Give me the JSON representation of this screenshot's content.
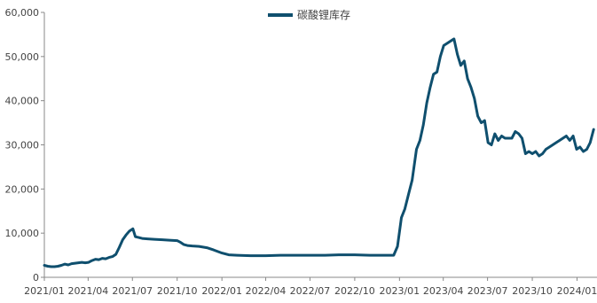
{
  "chart_data": {
    "type": "line",
    "title": "",
    "xlabel": "",
    "ylabel": "",
    "ylim": [
      0,
      60000
    ],
    "yticks": [
      "0",
      "10,000",
      "20,000",
      "30,000",
      "40,000",
      "50,000",
      "60,000"
    ],
    "x_start": "2021-01",
    "x_end": "2024-02",
    "xticks": [
      "2021/01",
      "2021/04",
      "2021/07",
      "2021/10",
      "2022/01",
      "2022/04",
      "2022/07",
      "2022/10",
      "2023/01",
      "2023/04",
      "2023/07",
      "2023/10",
      "2024/01"
    ],
    "grid": false,
    "legend_position": "top-center",
    "series": [
      {
        "name": "碳酸锂库存",
        "color": "#0f4f6e",
        "points": [
          [
            "2021-01-01",
            2700
          ],
          [
            "2021-01-08",
            2500
          ],
          [
            "2021-01-15",
            2400
          ],
          [
            "2021-01-22",
            2400
          ],
          [
            "2021-01-29",
            2500
          ],
          [
            "2021-02-05",
            2700
          ],
          [
            "2021-02-12",
            3000
          ],
          [
            "2021-02-19",
            2800
          ],
          [
            "2021-02-26",
            3100
          ],
          [
            "2021-03-05",
            3200
          ],
          [
            "2021-03-12",
            3300
          ],
          [
            "2021-03-19",
            3400
          ],
          [
            "2021-03-26",
            3300
          ],
          [
            "2021-04-02",
            3400
          ],
          [
            "2021-04-09",
            3800
          ],
          [
            "2021-04-16",
            4100
          ],
          [
            "2021-04-23",
            4000
          ],
          [
            "2021-04-30",
            4300
          ],
          [
            "2021-05-07",
            4200
          ],
          [
            "2021-05-14",
            4500
          ],
          [
            "2021-05-21",
            4700
          ],
          [
            "2021-05-28",
            5200
          ],
          [
            "2021-06-04",
            6800
          ],
          [
            "2021-06-11",
            8500
          ],
          [
            "2021-06-18",
            9600
          ],
          [
            "2021-06-25",
            10500
          ],
          [
            "2021-07-02",
            11000
          ],
          [
            "2021-07-07",
            9200
          ],
          [
            "2021-07-14",
            9000
          ],
          [
            "2021-07-21",
            8800
          ],
          [
            "2021-08-01",
            8700
          ],
          [
            "2021-08-15",
            8600
          ],
          [
            "2021-09-01",
            8500
          ],
          [
            "2021-09-15",
            8400
          ],
          [
            "2021-10-01",
            8300
          ],
          [
            "2021-10-08",
            7900
          ],
          [
            "2021-10-15",
            7400
          ],
          [
            "2021-10-22",
            7200
          ],
          [
            "2021-11-01",
            7100
          ],
          [
            "2021-11-15",
            7000
          ],
          [
            "2021-12-01",
            6700
          ],
          [
            "2021-12-15",
            6200
          ],
          [
            "2022-01-01",
            5500
          ],
          [
            "2022-01-15",
            5100
          ],
          [
            "2022-02-01",
            5000
          ],
          [
            "2022-03-01",
            4900
          ],
          [
            "2022-04-01",
            4900
          ],
          [
            "2022-05-01",
            5000
          ],
          [
            "2022-06-01",
            5000
          ],
          [
            "2022-07-01",
            5000
          ],
          [
            "2022-08-01",
            5000
          ],
          [
            "2022-09-01",
            5100
          ],
          [
            "2022-10-01",
            5100
          ],
          [
            "2022-11-01",
            5000
          ],
          [
            "2022-12-01",
            5000
          ],
          [
            "2022-12-20",
            5000
          ],
          [
            "2022-12-28",
            7000
          ],
          [
            "2023-01-05",
            13500
          ],
          [
            "2023-01-12",
            15500
          ],
          [
            "2023-01-20",
            19000
          ],
          [
            "2023-01-27",
            22000
          ],
          [
            "2023-02-05",
            29000
          ],
          [
            "2023-02-12",
            31000
          ],
          [
            "2023-02-19",
            34500
          ],
          [
            "2023-02-26",
            39500
          ],
          [
            "2023-03-05",
            43000
          ],
          [
            "2023-03-12",
            46000
          ],
          [
            "2023-03-19",
            46500
          ],
          [
            "2023-03-26",
            50000
          ],
          [
            "2023-04-02",
            52500
          ],
          [
            "2023-04-09",
            53000
          ],
          [
            "2023-04-16",
            53500
          ],
          [
            "2023-04-23",
            54000
          ],
          [
            "2023-04-30",
            50500
          ],
          [
            "2023-05-07",
            48000
          ],
          [
            "2023-05-14",
            49000
          ],
          [
            "2023-05-21",
            45000
          ],
          [
            "2023-05-28",
            43000
          ],
          [
            "2023-06-04",
            40500
          ],
          [
            "2023-06-11",
            36500
          ],
          [
            "2023-06-18",
            35000
          ],
          [
            "2023-06-25",
            35500
          ],
          [
            "2023-07-02",
            30500
          ],
          [
            "2023-07-09",
            30000
          ],
          [
            "2023-07-16",
            32500
          ],
          [
            "2023-07-23",
            31000
          ],
          [
            "2023-07-30",
            32000
          ],
          [
            "2023-08-06",
            31500
          ],
          [
            "2023-08-13",
            31500
          ],
          [
            "2023-08-20",
            31500
          ],
          [
            "2023-08-27",
            33000
          ],
          [
            "2023-09-03",
            32500
          ],
          [
            "2023-09-10",
            31500
          ],
          [
            "2023-09-17",
            28000
          ],
          [
            "2023-09-24",
            28500
          ],
          [
            "2023-10-01",
            28000
          ],
          [
            "2023-10-08",
            28500
          ],
          [
            "2023-10-15",
            27500
          ],
          [
            "2023-10-22",
            28000
          ],
          [
            "2023-10-29",
            29000
          ],
          [
            "2023-11-05",
            29500
          ],
          [
            "2023-11-12",
            30000
          ],
          [
            "2023-11-19",
            30500
          ],
          [
            "2023-11-26",
            31000
          ],
          [
            "2023-12-03",
            31500
          ],
          [
            "2023-12-10",
            32000
          ],
          [
            "2023-12-17",
            31000
          ],
          [
            "2023-12-24",
            32000
          ],
          [
            "2023-12-31",
            29000
          ],
          [
            "2024-01-07",
            29500
          ],
          [
            "2024-01-14",
            28500
          ],
          [
            "2024-01-21",
            29000
          ],
          [
            "2024-01-28",
            30500
          ],
          [
            "2024-02-04",
            33500
          ]
        ]
      }
    ]
  }
}
